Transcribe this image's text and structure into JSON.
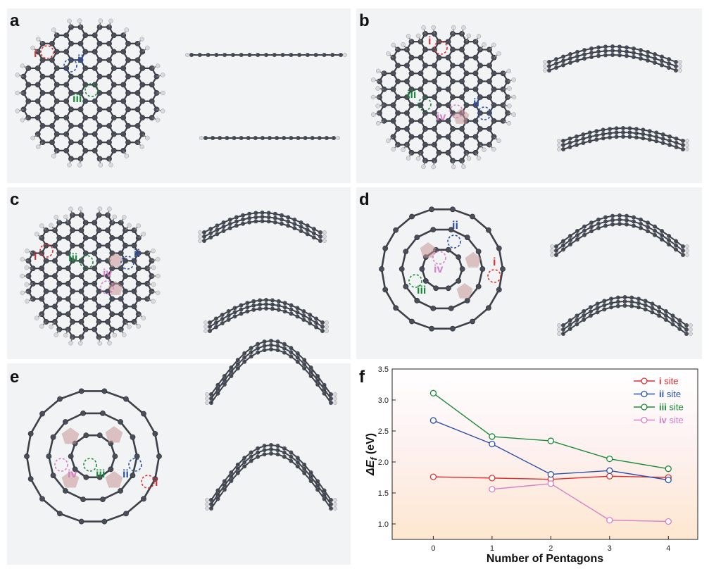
{
  "panels": {
    "a": {
      "label": "a"
    },
    "b": {
      "label": "b"
    },
    "c": {
      "label": "c"
    },
    "d": {
      "label": "d"
    },
    "e": {
      "label": "e"
    },
    "f": {
      "label": "f"
    }
  },
  "sites": {
    "i": "i",
    "ii": "ii",
    "iii": "iii",
    "iv": "iv"
  },
  "colors": {
    "i": "#e03030",
    "ii": "#2c4fa8",
    "iii": "#1c8a3a",
    "iv": "#d77fc7",
    "carbon": "#4a4e58",
    "hydrogen": "#d8dadf",
    "pentagon": "#c99598"
  },
  "chart_data": {
    "type": "line",
    "xlabel": "Number of Pentagons",
    "ylabel_main": "ΔE",
    "ylabel_sub": "f",
    "ylabel_unit": " (eV)",
    "xlim": [
      -0.7,
      4.5
    ],
    "ylim": [
      0.75,
      3.5
    ],
    "x_ticks": [
      0,
      1,
      2,
      3,
      4
    ],
    "y_ticks": [
      1.0,
      1.5,
      2.0,
      2.5,
      3.0,
      3.5
    ],
    "y_tick_labels": [
      "1.0",
      "1.5",
      "2.0",
      "2.5",
      "3.0",
      "3.5"
    ],
    "legend_position": "top-right",
    "series": [
      {
        "name": "i",
        "legend_suffix": " site",
        "color": "#e03030",
        "x": [
          0,
          1,
          2,
          3,
          4
        ],
        "y": [
          1.76,
          1.74,
          1.72,
          1.77,
          1.75
        ]
      },
      {
        "name": "ii",
        "legend_suffix": " site",
        "color": "#2c4fa8",
        "x": [
          0,
          1,
          2,
          3,
          4
        ],
        "y": [
          2.67,
          2.29,
          1.8,
          1.86,
          1.71
        ]
      },
      {
        "name": "iii",
        "legend_suffix": " site",
        "color": "#1c8a3a",
        "x": [
          0,
          1,
          2,
          3,
          4
        ],
        "y": [
          3.11,
          2.41,
          2.34,
          2.05,
          1.89
        ]
      },
      {
        "name": "iv",
        "legend_suffix": " site",
        "color": "#d77fc7",
        "x": [
          1,
          2,
          3,
          4
        ],
        "y": [
          1.56,
          1.65,
          1.06,
          1.04
        ]
      }
    ]
  }
}
